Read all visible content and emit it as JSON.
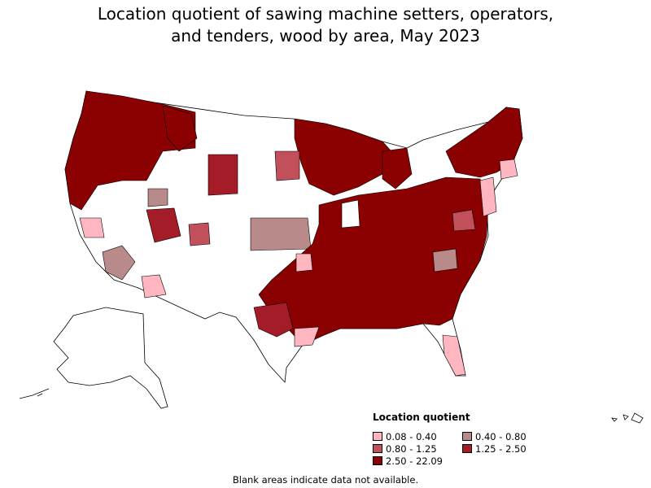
{
  "title": {
    "line1": "Location quotient of sawing machine setters, operators,",
    "line2": "and tenders, wood by area, May 2023"
  },
  "legend": {
    "title": "Location quotient",
    "items": [
      {
        "label": "0.08 - 0.40",
        "color": "#ffb6c1"
      },
      {
        "label": "0.40 - 0.80",
        "color": "#b88a8a"
      },
      {
        "label": "0.80 - 1.25",
        "color": "#c2505a"
      },
      {
        "label": "1.25 - 2.50",
        "color": "#a31c28"
      },
      {
        "label": "2.50 - 22.09",
        "color": "#8b0000"
      }
    ]
  },
  "footnote": "Blank areas indicate data not available.",
  "colors": {
    "no_data": "#ffffff",
    "border": "#000000"
  }
}
